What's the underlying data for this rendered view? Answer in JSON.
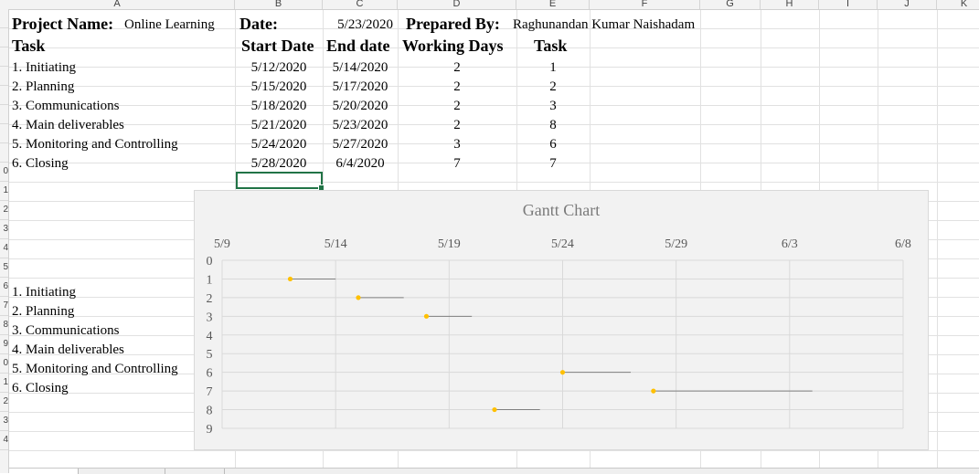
{
  "columns": [
    "A",
    "B",
    "C",
    "D",
    "E",
    "F",
    "G",
    "H",
    "I",
    "J",
    "K"
  ],
  "row_numbers": [
    "",
    "",
    "",
    "",
    "",
    "",
    "",
    "",
    "0",
    "1",
    "2",
    "3",
    "4",
    "5",
    "6",
    "7",
    "8",
    "9",
    "0",
    "1",
    "2",
    "3",
    "4"
  ],
  "header": {
    "project_label": "Project Name:",
    "project_value": "Online Learning",
    "date_label": "Date:",
    "date_value": "5/23/2020",
    "prepared_label": "Prepared By:",
    "prepared_value": "Raghunandan Kumar Naishadam"
  },
  "table": {
    "headers": [
      "Task",
      "Start Date",
      "End date",
      "Working Days",
      "Task"
    ],
    "rows": [
      {
        "task": "1. Initiating",
        "start": "5/12/2020",
        "end": "5/14/2020",
        "days": "2",
        "num": "1"
      },
      {
        "task": "2. Planning",
        "start": "5/15/2020",
        "end": "5/17/2020",
        "days": "2",
        "num": "2"
      },
      {
        "task": "3. Communications",
        "start": "5/18/2020",
        "end": "5/20/2020",
        "days": "2",
        "num": "3"
      },
      {
        "task": "4. Main deliverables",
        "start": "5/21/2020",
        "end": "5/23/2020",
        "days": "2",
        "num": "8"
      },
      {
        "task": "5. Monitoring and Controlling",
        "start": "5/24/2020",
        "end": "5/27/2020",
        "days": "3",
        "num": "6"
      },
      {
        "task": "6. Closing",
        "start": "5/28/2020",
        "end": "6/4/2020",
        "days": "7",
        "num": "7"
      }
    ]
  },
  "task_list": [
    "1. Initiating",
    "2. Planning",
    "3. Communications",
    "4. Main deliverables",
    "5. Monitoring and Controlling",
    "6. Closing"
  ],
  "chart_data": {
    "type": "scatter",
    "title": "Gantt Chart",
    "x_ticks": [
      "5/9",
      "5/14",
      "5/19",
      "5/24",
      "5/29",
      "6/3",
      "6/8"
    ],
    "y_ticks": [
      "0",
      "1",
      "2",
      "3",
      "4",
      "5",
      "6",
      "7",
      "8",
      "9"
    ],
    "xlim": [
      "2020-05-09",
      "2020-06-08"
    ],
    "ylim": [
      0,
      9
    ],
    "y_reversed": true,
    "grid": true,
    "marker_color": "#ffc000",
    "bar_color": "#7f7f7f",
    "points": [
      {
        "start": "2020-05-12",
        "end": "2020-05-14",
        "task": 1
      },
      {
        "start": "2020-05-15",
        "end": "2020-05-17",
        "task": 2
      },
      {
        "start": "2020-05-18",
        "end": "2020-05-20",
        "task": 3
      },
      {
        "start": "2020-05-21",
        "end": "2020-05-23",
        "task": 8
      },
      {
        "start": "2020-05-24",
        "end": "2020-05-27",
        "task": 6
      },
      {
        "start": "2020-05-28",
        "end": "2020-06-04",
        "task": 7
      }
    ]
  }
}
